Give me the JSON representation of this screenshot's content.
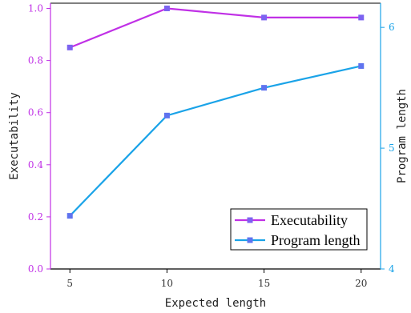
{
  "chart_data": {
    "type": "line",
    "x": [
      5,
      10,
      15,
      20
    ],
    "xticks": [
      5,
      10,
      15,
      20
    ],
    "xlim": [
      4,
      21
    ],
    "xlabel": "Expected length",
    "series": [
      {
        "name": "Executability",
        "axis": "left",
        "color": "#c030e6",
        "marker_color": "#7c63f0",
        "values": [
          0.85,
          1.0,
          0.965,
          0.965
        ]
      },
      {
        "name": "Program length",
        "axis": "right",
        "color": "#1aa3e8",
        "marker_color": "#5f73ef",
        "values": [
          4.44,
          5.27,
          5.5,
          5.68
        ]
      }
    ],
    "y_left": {
      "label": "Executability",
      "ylim": [
        0,
        1.02
      ],
      "ticks": [
        "0.0",
        "0.2",
        "0.4",
        "0.6",
        "0.8",
        "1.0"
      ],
      "color": "#c030e6"
    },
    "y_right": {
      "label": "Program length",
      "ylim": [
        4,
        6.2
      ],
      "ticks": [
        "4",
        "5",
        "6"
      ],
      "color": "#1aa3e8"
    },
    "legend_position": "bottom-right",
    "grid": false
  }
}
